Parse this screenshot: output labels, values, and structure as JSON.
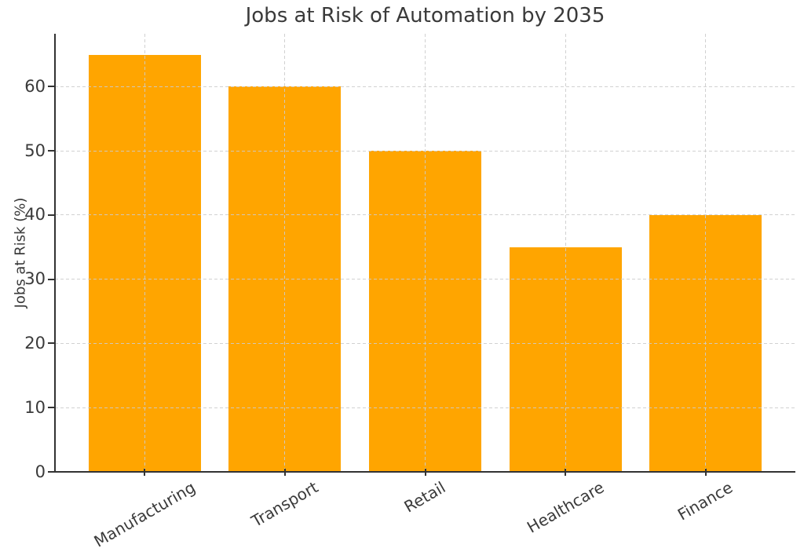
{
  "chart_data": {
    "type": "bar",
    "title": "Jobs at Risk of Automation by 2035",
    "xlabel": "",
    "ylabel": "Jobs at Risk (%)",
    "categories": [
      "Manufacturing",
      "Transport",
      "Retail",
      "Healthcare",
      "Finance"
    ],
    "values": [
      65,
      60,
      50,
      35,
      40
    ],
    "yticks": [
      0,
      10,
      20,
      30,
      40,
      50,
      60
    ],
    "ylim": [
      0,
      68.25
    ],
    "xtick_rotation_deg": 30,
    "bar_color": "#FFA500",
    "grid": "dashed",
    "grid_color": "#cccccc",
    "axis_color": "#333333",
    "text_color": "#3a3a3a",
    "background": "#ffffff",
    "legend": "none"
  }
}
